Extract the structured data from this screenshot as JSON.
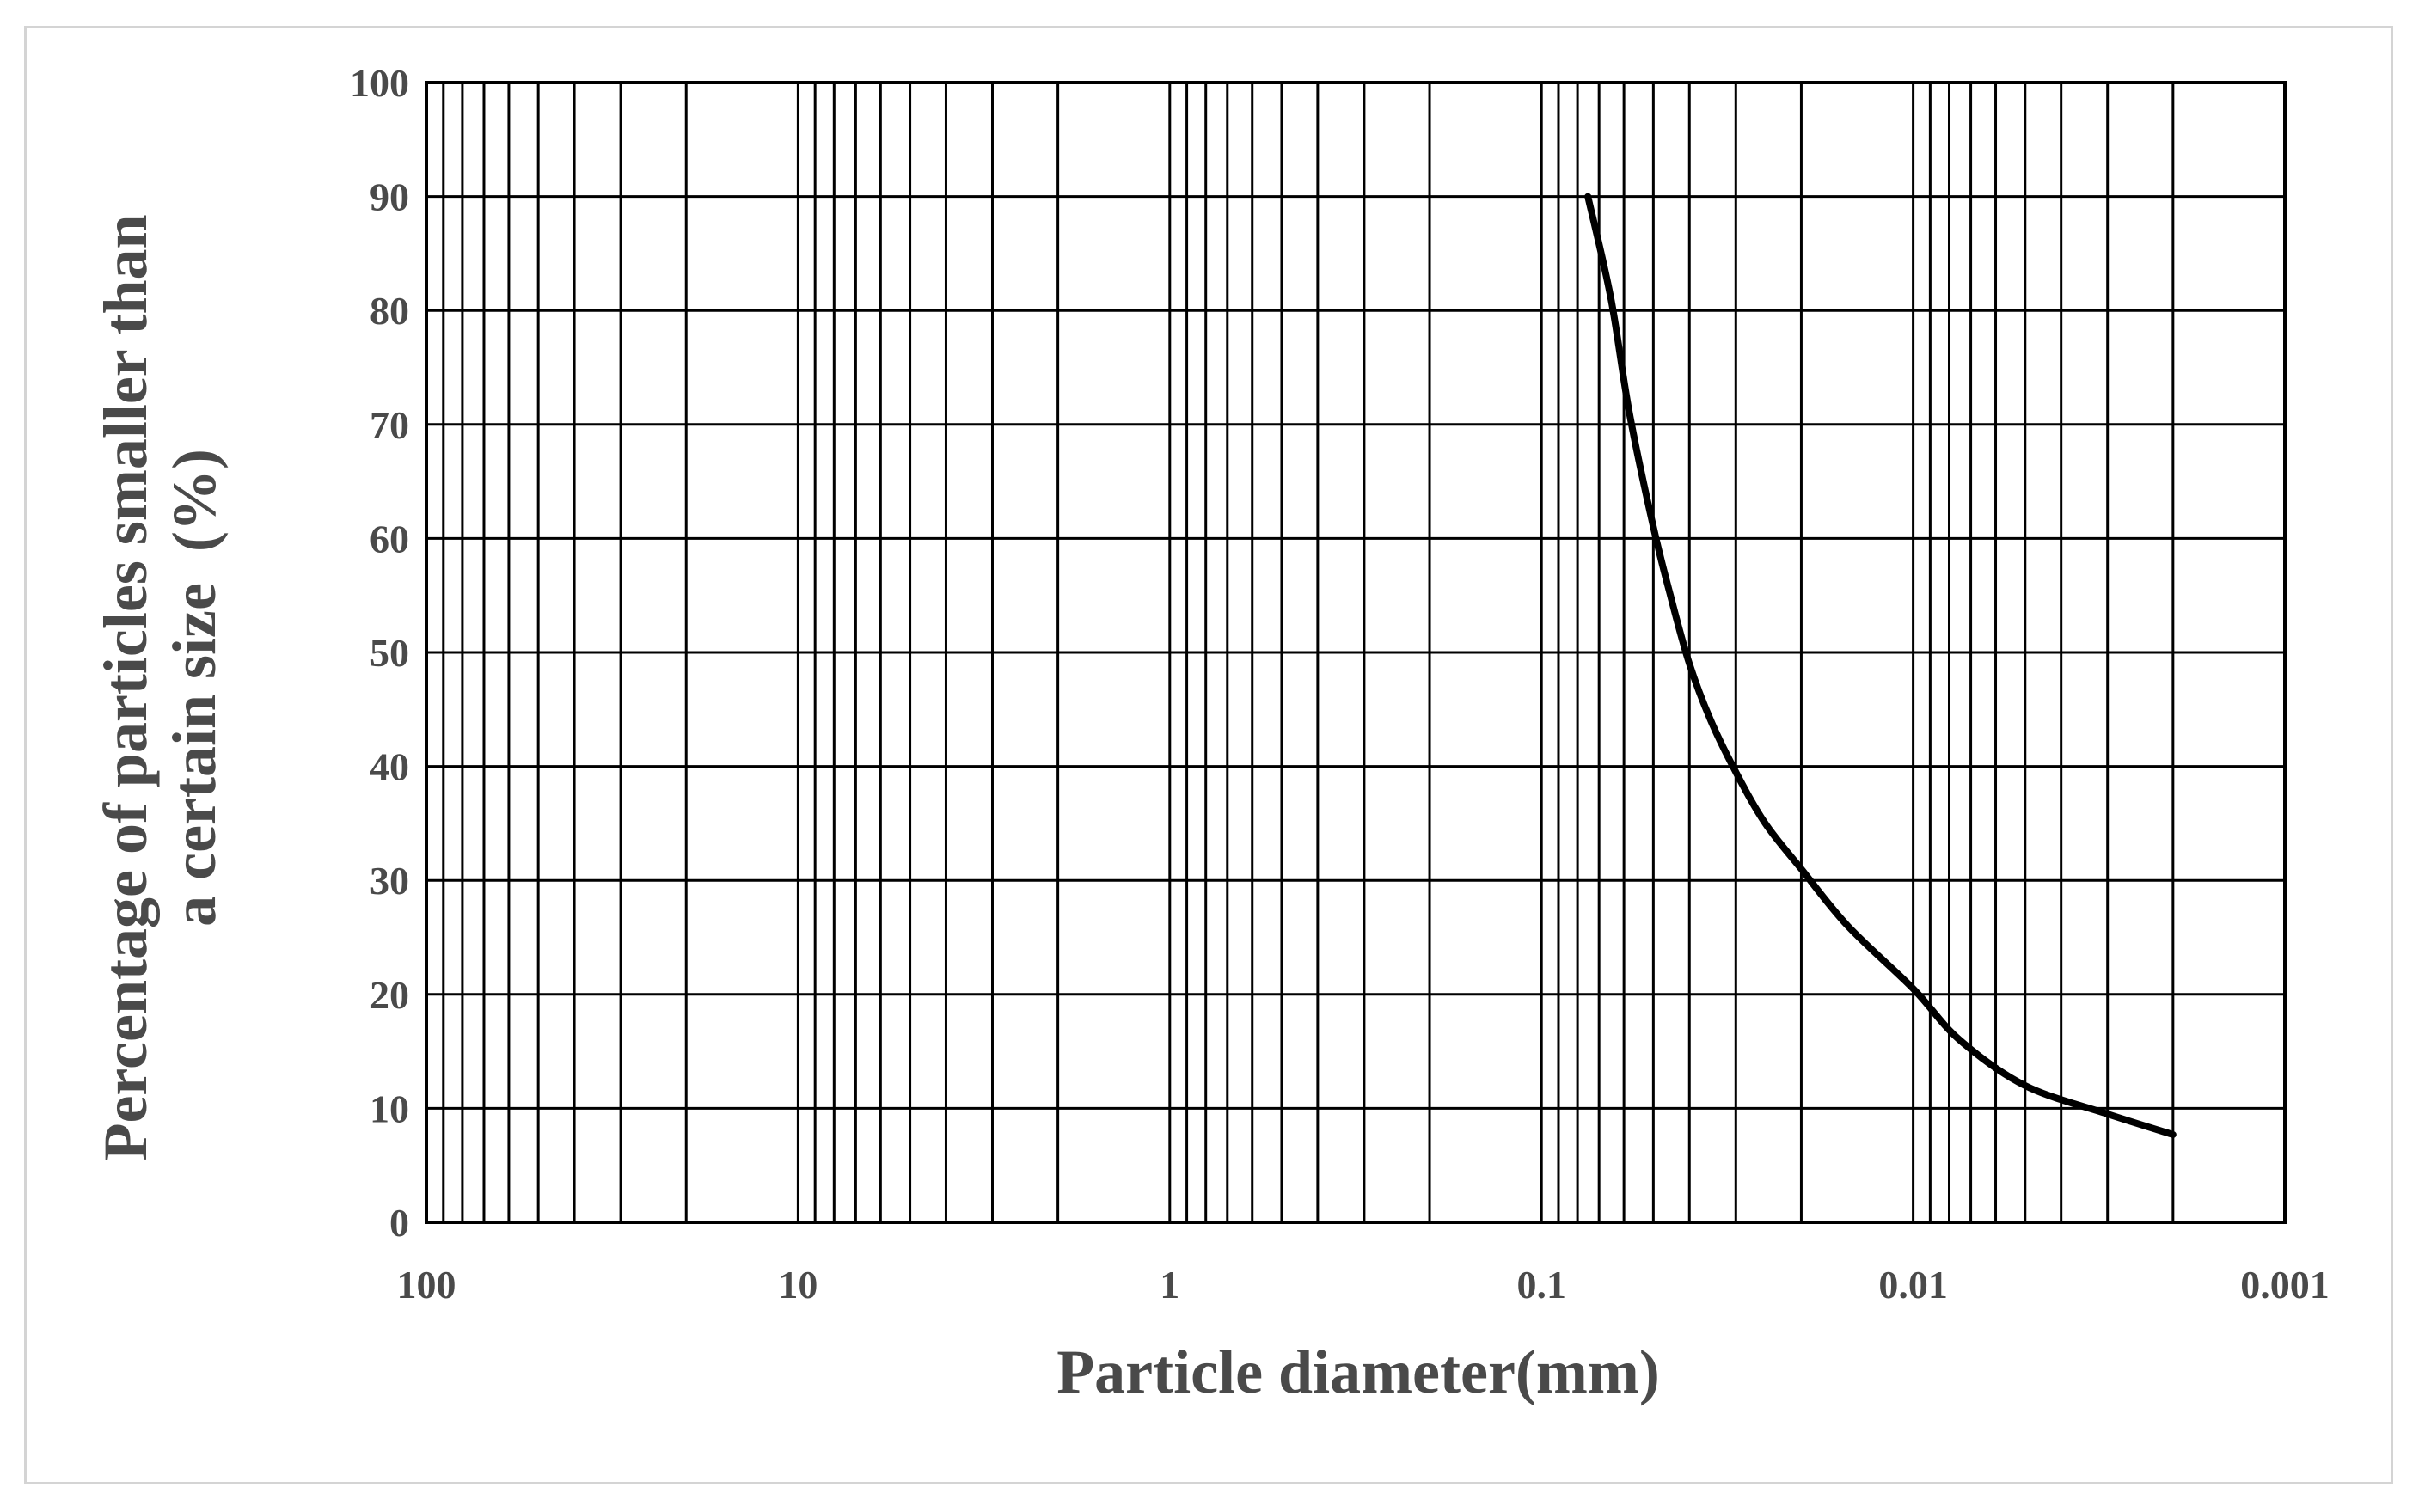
{
  "chart_data": {
    "type": "line",
    "x_scale": "log",
    "x_reversed": true,
    "xlim": [
      100,
      0.001
    ],
    "ylim": [
      0,
      100
    ],
    "xlabel": "Particle diameter(mm)",
    "ylabel_lines": [
      "Percentage of particles smaller than",
      "a certain size  (%)"
    ],
    "x_tick_labels": [
      "100",
      "10",
      "1",
      "0.1",
      "0.01",
      "0.001"
    ],
    "x_tick_values": [
      100,
      10,
      1,
      0.1,
      0.01,
      0.001
    ],
    "y_tick_labels": [
      "0",
      "10",
      "20",
      "30",
      "40",
      "50",
      "60",
      "70",
      "80",
      "90",
      "100"
    ],
    "y_tick_values": [
      0,
      10,
      20,
      30,
      40,
      50,
      60,
      70,
      80,
      90,
      100
    ],
    "grid": true,
    "series": [
      {
        "color": "#000000",
        "x": [
          0.075,
          0.065,
          0.058,
          0.05,
          0.045,
          0.04,
          0.035,
          0.03,
          0.025,
          0.02,
          0.015,
          0.01,
          0.0075,
          0.005,
          0.003,
          0.002
        ],
        "y": [
          90,
          81,
          71,
          61,
          55,
          49,
          44,
          39.5,
          35,
          31,
          26,
          20.5,
          16,
          12,
          9.5,
          7.7
        ]
      }
    ]
  }
}
